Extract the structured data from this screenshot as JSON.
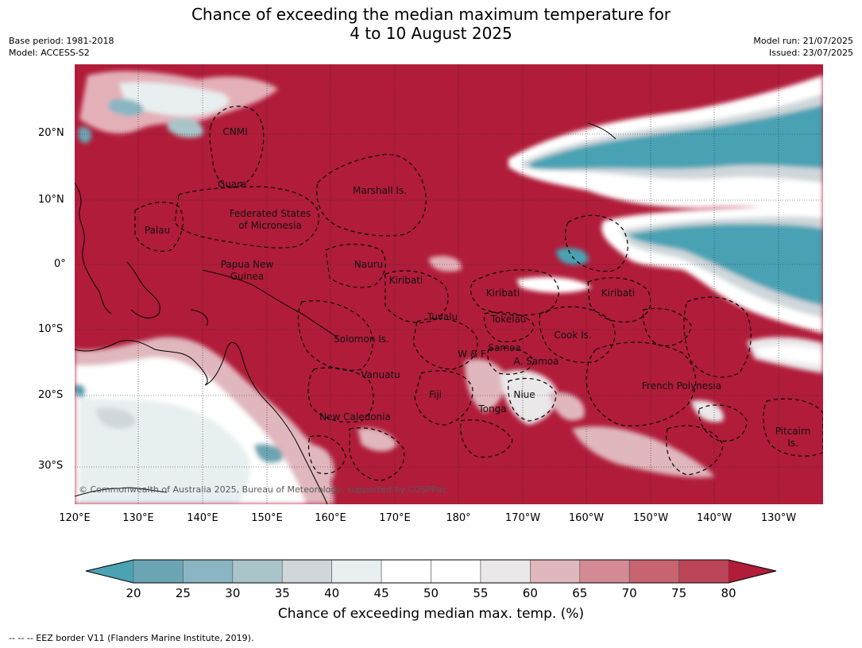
{
  "title": {
    "line1": "Chance of exceeding the median maximum temperature for",
    "line2": "4 to 10 August 2025"
  },
  "meta": {
    "base_period": "Base period: 1981-2018",
    "model": "Model: ACCESS-S2",
    "model_run": "Model run: 21/07/2025",
    "issued": "Issued: 23/07/2025"
  },
  "map": {
    "lat_labels": [
      "20°N",
      "10°N",
      "0°",
      "10°S",
      "20°S",
      "30°S"
    ],
    "lon_labels": [
      "120°E",
      "130°E",
      "140°E",
      "150°E",
      "160°E",
      "170°E",
      "180°",
      "170°W",
      "160°W",
      "150°W",
      "140°W",
      "130°W"
    ],
    "places": {
      "cnmi": "CNMI",
      "guam": "Guam",
      "marshall": "Marshall Is.",
      "fsm1": "Federated States",
      "fsm2": "of Micronesia",
      "palau": "Palau",
      "png1": "Papua New",
      "png2": "Guinea",
      "nauru": "Nauru",
      "kiribati1": "Kiribati",
      "kiribati2": "Kiribati",
      "kiribati3": "Kiribati",
      "tuvalu": "Tuvalu",
      "tokelau": "Tokelau",
      "cook": "Cook Is.",
      "solomon": "Solomon Is.",
      "wf": "W & F",
      "samoa": "Samoa",
      "asamoa": "A. Samoa",
      "vanuatu": "Vanuatu",
      "fiji": "Fiji",
      "niue": "Niue",
      "tonga": "Tonga",
      "frenchpoly": "French Polynesia",
      "newcal": "New Caledonia",
      "pitcairn1": "Pitcairn",
      "pitcairn2": "Is."
    },
    "copyright": "© Commonwealth of Australia 2025, Bureau of Meteorology, supported by COSPPac"
  },
  "colorbar": {
    "ticks": [
      "20",
      "25",
      "30",
      "35",
      "40",
      "45",
      "50",
      "55",
      "60",
      "65",
      "70",
      "75",
      "80"
    ],
    "colors": [
      "#6ba5b4",
      "#8ab6c3",
      "#a9c5ca",
      "#cfd7da",
      "#e8eff0",
      "#ffffff",
      "#ffffff",
      "#ebe8ea",
      "#e0b7bd",
      "#d38a94",
      "#c76470",
      "#bc4558"
    ],
    "under_color": "#4aa2b3",
    "over_color": "#b01c3a",
    "label": "Chance of exceeding median max. temp. (%)"
  },
  "footnote": "--  --  -- EEZ border V11 (Flanders Marine Institute, 2019).",
  "colors": {
    "warm": "#b01c3a",
    "cool": "#4aa2b3",
    "neutral": "#ffffff"
  }
}
